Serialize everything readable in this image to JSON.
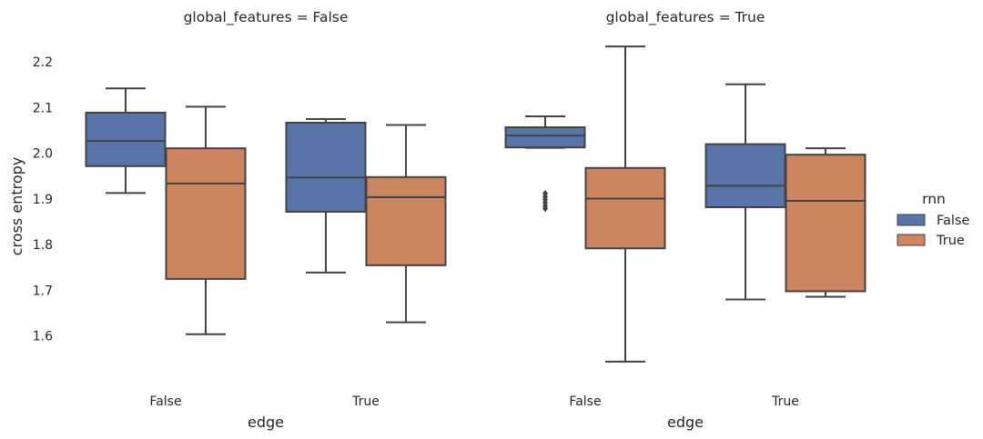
{
  "chart_data": {
    "type": "box",
    "facet_var": "global_features",
    "hue_var": "rnn",
    "palette": {
      "False": "#5874a8",
      "True": "#cd855f"
    },
    "ylabel": "cross entropy",
    "yticks": [
      1.6,
      1.7,
      1.8,
      1.9,
      2.0,
      2.1,
      2.2
    ],
    "ylim": [
      1.5,
      2.26
    ],
    "legend": {
      "title": "rnn",
      "position": "right",
      "entries": [
        {
          "label": "False",
          "color": "#5874a8"
        },
        {
          "label": "True",
          "color": "#cd855f"
        }
      ]
    },
    "panels": [
      {
        "title": "global_features = False",
        "xlabel": "edge",
        "categories": [
          "False",
          "True"
        ],
        "boxes": [
          {
            "category": "False",
            "hue": "False",
            "whislo": 1.913,
            "q1": 1.972,
            "med": 2.027,
            "q3": 2.089,
            "whishi": 2.142,
            "fliers": []
          },
          {
            "category": "False",
            "hue": "True",
            "whislo": 1.604,
            "q1": 1.725,
            "med": 1.934,
            "q3": 2.011,
            "whishi": 2.102,
            "fliers": []
          },
          {
            "category": "True",
            "hue": "False",
            "whislo": 1.739,
            "q1": 1.872,
            "med": 1.947,
            "q3": 2.067,
            "whishi": 2.075,
            "fliers": []
          },
          {
            "category": "True",
            "hue": "True",
            "whislo": 1.63,
            "q1": 1.755,
            "med": 1.904,
            "q3": 1.948,
            "whishi": 2.062,
            "fliers": []
          }
        ]
      },
      {
        "title": "global_features = True",
        "xlabel": "edge",
        "categories": [
          "False",
          "True"
        ],
        "boxes": [
          {
            "category": "False",
            "hue": "False",
            "whislo": 2.012,
            "q1": 2.013,
            "med": 2.039,
            "q3": 2.057,
            "whishi": 2.081,
            "fliers": [
              1.879,
              1.885,
              1.892,
              1.899,
              1.905,
              1.912
            ]
          },
          {
            "category": "False",
            "hue": "True",
            "whislo": 1.544,
            "q1": 1.792,
            "med": 1.901,
            "q3": 1.968,
            "whishi": 2.234,
            "fliers": []
          },
          {
            "category": "True",
            "hue": "False",
            "whislo": 1.68,
            "q1": 1.882,
            "med": 1.929,
            "q3": 2.02,
            "whishi": 2.151,
            "fliers": []
          },
          {
            "category": "True",
            "hue": "True",
            "whislo": 1.686,
            "q1": 1.698,
            "med": 1.896,
            "q3": 1.997,
            "whishi": 2.011,
            "fliers": []
          }
        ]
      }
    ]
  }
}
